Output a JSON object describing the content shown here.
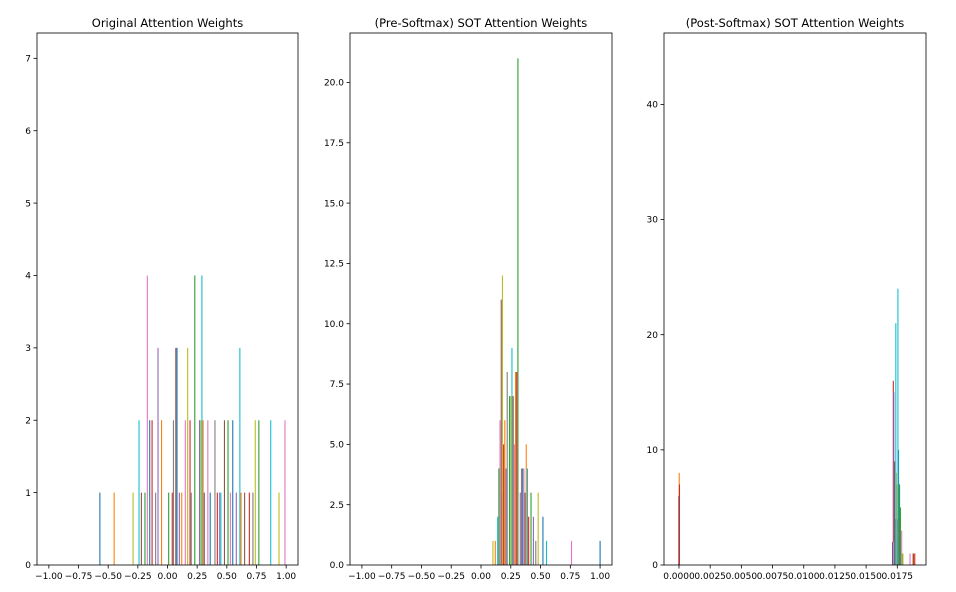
{
  "chart_data": [
    {
      "type": "bar",
      "title": "Original Attention Weights",
      "xlabel": "",
      "ylabel": "",
      "xlim": [
        -1.1,
        1.1
      ],
      "ylim": [
        0,
        7.35
      ],
      "xticks": [
        -1.0,
        -0.75,
        -0.5,
        -0.25,
        0.0,
        0.25,
        0.5,
        0.75,
        1.0
      ],
      "xtick_labels": [
        "−1.00",
        "−0.75",
        "−0.50",
        "−0.25",
        "0.00",
        "0.25",
        "0.50",
        "0.75",
        "1.00"
      ],
      "yticks": [
        0,
        1,
        2,
        3,
        4,
        5,
        6,
        7
      ],
      "ytick_labels": [
        "0",
        "1",
        "2",
        "3",
        "4",
        "5",
        "6",
        "7"
      ],
      "grid": false,
      "series": [
        {
          "color": "#1f77b4",
          "x": [
            -0.57,
            -0.15,
            0.08,
            0.36,
            0.55
          ],
          "values": [
            1,
            2,
            3,
            1,
            2
          ]
        },
        {
          "color": "#ff7f0e",
          "x": [
            -0.45,
            -0.05,
            0.12,
            0.3,
            0.62
          ],
          "values": [
            1,
            2,
            1,
            2,
            1
          ]
        },
        {
          "color": "#2ca02c",
          "x": [
            -0.19,
            0.01,
            0.23,
            0.51,
            0.77
          ],
          "values": [
            1,
            1,
            4,
            2,
            2
          ]
        },
        {
          "color": "#d62728",
          "x": [
            -0.13,
            0.04,
            0.19,
            0.42,
            0.69
          ],
          "values": [
            2,
            1,
            2,
            1,
            1
          ]
        },
        {
          "color": "#9467bd",
          "x": [
            -0.08,
            0.1,
            0.27,
            0.44,
            0.58
          ],
          "values": [
            3,
            1,
            2,
            1,
            1
          ]
        },
        {
          "color": "#8c564b",
          "x": [
            -0.22,
            0.07,
            0.31,
            0.48,
            0.65
          ],
          "values": [
            1,
            3,
            1,
            2,
            1
          ]
        },
        {
          "color": "#e377c2",
          "x": [
            -0.17,
            0.15,
            0.34,
            0.53,
            0.99
          ],
          "values": [
            4,
            2,
            2,
            1,
            2
          ]
        },
        {
          "color": "#7f7f7f",
          "x": [
            -0.1,
            0.05,
            0.2,
            0.4,
            0.72
          ],
          "values": [
            1,
            2,
            1,
            2,
            1
          ]
        },
        {
          "color": "#bcbd22",
          "x": [
            -0.29,
            0.17,
            0.28,
            0.74,
            0.94
          ],
          "values": [
            1,
            3,
            2,
            2,
            1
          ]
        },
        {
          "color": "#17becf",
          "x": [
            -0.24,
            0.29,
            0.45,
            0.61,
            0.87
          ],
          "values": [
            2,
            4,
            1,
            3,
            2
          ]
        }
      ]
    },
    {
      "type": "bar",
      "title": "(Pre-Softmax) SOT Attention Weights",
      "xlabel": "",
      "ylabel": "",
      "xlim": [
        -1.1,
        1.1
      ],
      "ylim": [
        0,
        22.05
      ],
      "xticks": [
        -1.0,
        -0.75,
        -0.5,
        -0.25,
        0.0,
        0.25,
        0.5,
        0.75,
        1.0
      ],
      "xtick_labels": [
        "−1.00",
        "−0.75",
        "−0.50",
        "−0.25",
        "0.00",
        "0.25",
        "0.50",
        "0.75",
        "1.00"
      ],
      "yticks": [
        0,
        2.5,
        5.0,
        7.5,
        10.0,
        12.5,
        15.0,
        17.5,
        20.0
      ],
      "ytick_labels": [
        "0.0",
        "2.5",
        "5.0",
        "7.5",
        "10.0",
        "12.5",
        "15.0",
        "17.5",
        "20.0"
      ],
      "grid": false,
      "series": [
        {
          "color": "#1f77b4",
          "x": [
            0.18,
            0.26,
            0.35,
            0.52,
            1.0
          ],
          "values": [
            3,
            5,
            4,
            2,
            1
          ]
        },
        {
          "color": "#ff7f0e",
          "x": [
            0.12,
            0.2,
            0.29,
            0.38
          ],
          "values": [
            1,
            6,
            8,
            5
          ]
        },
        {
          "color": "#2ca02c",
          "x": [
            0.15,
            0.24,
            0.31,
            0.42
          ],
          "values": [
            4,
            7,
            21,
            3
          ]
        },
        {
          "color": "#d62728",
          "x": [
            0.19,
            0.3,
            0.4
          ],
          "values": [
            5,
            8,
            2
          ]
        },
        {
          "color": "#9467bd",
          "x": [
            0.21,
            0.33,
            0.44
          ],
          "values": [
            4,
            3,
            2
          ]
        },
        {
          "color": "#8c564b",
          "x": [
            0.17,
            0.27,
            0.37
          ],
          "values": [
            11,
            7,
            3
          ]
        },
        {
          "color": "#e377c2",
          "x": [
            0.16,
            0.28,
            0.36,
            0.76
          ],
          "values": [
            6,
            5,
            4,
            1
          ]
        },
        {
          "color": "#7f7f7f",
          "x": [
            0.22,
            0.34,
            0.46
          ],
          "values": [
            8,
            4,
            1
          ]
        },
        {
          "color": "#bcbd22",
          "x": [
            0.1,
            0.18,
            0.25,
            0.48
          ],
          "values": [
            1,
            12,
            7,
            3
          ]
        },
        {
          "color": "#17becf",
          "x": [
            0.14,
            0.26,
            0.39,
            0.55
          ],
          "values": [
            2,
            9,
            4,
            1
          ]
        }
      ]
    },
    {
      "type": "bar",
      "title": "(Post-Softmax) SOT Attention Weights",
      "xlabel": "",
      "ylabel": "",
      "xlim": [
        -0.0012,
        0.0198
      ],
      "ylim": [
        0,
        46.2
      ],
      "xticks": [
        0.0,
        0.0025,
        0.005,
        0.0075,
        0.01,
        0.0125,
        0.015,
        0.0175
      ],
      "xtick_labels": [
        "0.0000",
        "0.0025",
        "0.0050",
        "0.0075",
        "0.0100",
        "0.0125",
        "0.0150",
        "0.0175"
      ],
      "yticks": [
        0,
        10,
        20,
        30,
        40
      ],
      "ytick_labels": [
        "0",
        "10",
        "20",
        "30",
        "40"
      ],
      "grid": false,
      "series": [
        {
          "color": "#1f77b4",
          "x": [
            -2e-05,
            0.01712,
            0.0176
          ],
          "values": [
            6,
            2,
            10
          ]
        },
        {
          "color": "#ff7f0e",
          "x": [
            2e-05,
            0.01745,
            0.01875
          ],
          "values": [
            8,
            7,
            1
          ]
        },
        {
          "color": "#2ca02c",
          "x": [
            0.01735,
            0.01768,
            0.01775
          ],
          "values": [
            4,
            7,
            5
          ]
        },
        {
          "color": "#d62728",
          "x": [
            4e-05,
            0.01718,
            0.0189
          ],
          "values": [
            7,
            16,
            1
          ]
        },
        {
          "color": "#9467bd",
          "x": [
            0.01722,
            0.0175
          ],
          "values": [
            15,
            4
          ]
        },
        {
          "color": "#8c564b",
          "x": [
            0.01728,
            0.0176,
            0.0188
          ],
          "values": [
            9,
            4,
            1
          ]
        },
        {
          "color": "#e377c2",
          "x": [
            0.0172,
            0.01785,
            0.01852
          ],
          "values": [
            2,
            3,
            1
          ]
        },
        {
          "color": "#7f7f7f",
          "x": [
            0.01738,
            0.0179
          ],
          "values": [
            3,
            1
          ]
        },
        {
          "color": "#bcbd22",
          "x": [
            0.01742,
            0.01795
          ],
          "values": [
            8,
            1
          ]
        },
        {
          "color": "#17becf",
          "x": [
            0.01738,
            0.01755
          ],
          "values": [
            21,
            24
          ]
        }
      ]
    }
  ]
}
